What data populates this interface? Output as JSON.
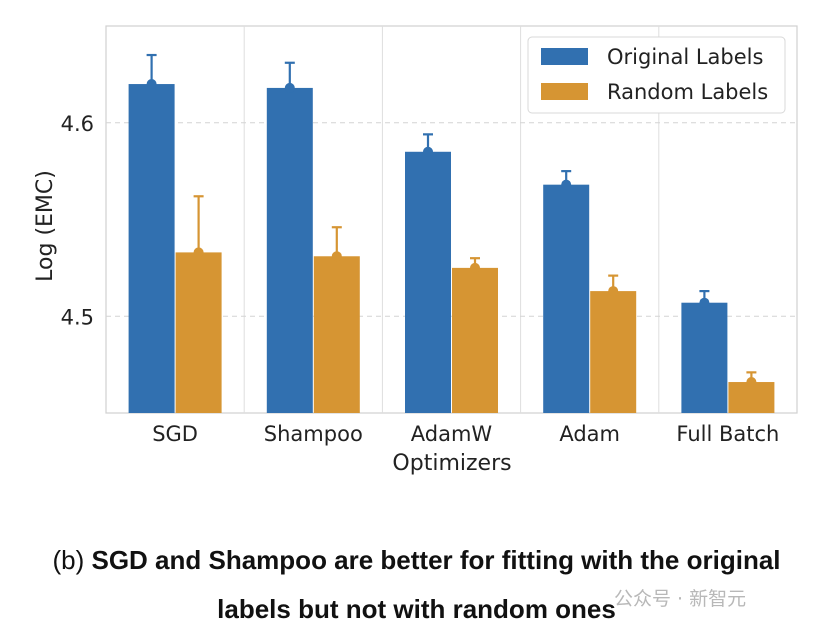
{
  "chart_data": {
    "type": "bar",
    "title": "",
    "xlabel": "Optimizers",
    "ylabel": "Log (EMC)",
    "categories": [
      "SGD",
      "Shampoo",
      "AdamW",
      "Adam",
      "Full Batch"
    ],
    "ylim": [
      4.45,
      4.65
    ],
    "yticks": [
      "4.5",
      "4.6"
    ],
    "ytick_values": [
      4.5,
      4.6
    ],
    "grid": true,
    "legend_position": "top-right",
    "series": [
      {
        "name": "Original Labels",
        "color": "#3170b0",
        "values": [
          4.62,
          4.618,
          4.585,
          4.568,
          4.507
        ],
        "err_upper": [
          4.635,
          4.631,
          4.594,
          4.575,
          4.513
        ]
      },
      {
        "name": "Random Labels",
        "color": "#d69533",
        "values": [
          4.533,
          4.531,
          4.525,
          4.513,
          4.466
        ],
        "err_upper": [
          4.562,
          4.546,
          4.53,
          4.521,
          4.471
        ]
      }
    ]
  },
  "caption": {
    "prefix": "(b)",
    "line1": "SGD and Shampoo are better for fitting with the original",
    "line2": "labels but not with random ones"
  },
  "watermark": "公众号 · 新智元"
}
